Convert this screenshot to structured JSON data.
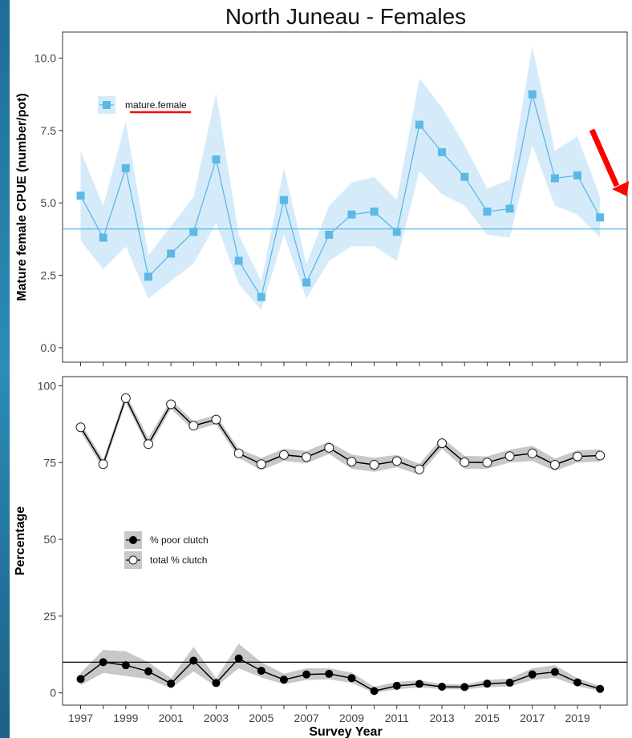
{
  "figure": {
    "title": "North Juneau - Females",
    "xlabel": "Survey Year",
    "colors": {
      "cpue": "#5cb8e6",
      "cpue_band": "#d6ebfa",
      "clutch": "#000000",
      "clutch_band": "#c8c8c8",
      "annotation": "#ff0000"
    }
  },
  "chart_data": [
    {
      "type": "line",
      "title": "North Juneau - Females",
      "xlabel": "",
      "ylabel": "Mature female CPUE (number/pot)",
      "ylim": [
        -0.5,
        10.9
      ],
      "yticks": [
        0.0,
        2.5,
        5.0,
        7.5,
        10.0
      ],
      "ytick_labels": [
        "0.0",
        "2.5",
        "5.0",
        "7.5",
        "10.0"
      ],
      "x": [
        1997,
        1998,
        1999,
        2000,
        2001,
        2002,
        2003,
        2004,
        2005,
        2006,
        2007,
        2008,
        2009,
        2010,
        2011,
        2012,
        2013,
        2014,
        2015,
        2016,
        2017,
        2018,
        2019,
        2020
      ],
      "series": [
        {
          "name": "mature.female",
          "values": [
            5.25,
            3.8,
            6.2,
            2.45,
            3.25,
            4.0,
            6.5,
            3.0,
            1.75,
            5.1,
            2.25,
            3.9,
            4.6,
            4.7,
            4.0,
            7.7,
            6.75,
            5.9,
            4.7,
            4.8,
            8.75,
            5.85,
            5.95,
            4.5
          ],
          "lower": [
            3.7,
            2.7,
            3.5,
            1.7,
            2.3,
            2.9,
            4.3,
            2.2,
            1.3,
            3.9,
            1.7,
            3.0,
            3.5,
            3.5,
            3.0,
            6.1,
            5.3,
            4.9,
            3.9,
            3.8,
            7.0,
            4.9,
            4.6,
            3.8
          ],
          "upper": [
            6.8,
            4.9,
            7.8,
            3.2,
            4.2,
            5.2,
            8.8,
            3.9,
            2.3,
            6.2,
            2.9,
            4.9,
            5.7,
            5.9,
            5.1,
            9.3,
            8.3,
            7.0,
            5.5,
            5.8,
            10.4,
            6.8,
            7.3,
            5.2
          ]
        }
      ],
      "hline": 4.1,
      "legend_position": "top-left",
      "grid": false,
      "annotations": [
        "red underline beneath legend label",
        "red downward arrow at right edge near 2020"
      ]
    },
    {
      "type": "line",
      "title": "",
      "xlabel": "Survey Year",
      "ylabel": "Percentage",
      "ylim": [
        -4,
        103
      ],
      "yticks": [
        0,
        25,
        50,
        75,
        100
      ],
      "ytick_labels": [
        "0",
        "25",
        "50",
        "75",
        "100"
      ],
      "x": [
        1997,
        1998,
        1999,
        2000,
        2001,
        2002,
        2003,
        2004,
        2005,
        2006,
        2007,
        2008,
        2009,
        2010,
        2011,
        2012,
        2013,
        2014,
        2015,
        2016,
        2017,
        2018,
        2019,
        2020
      ],
      "xticks": [
        1997,
        1999,
        2001,
        2003,
        2005,
        2007,
        2009,
        2011,
        2013,
        2015,
        2017,
        2019
      ],
      "xtick_labels": [
        "1997",
        "1999",
        "2001",
        "2003",
        "2005",
        "2007",
        "2009",
        "2011",
        "2013",
        "2015",
        "2017",
        "2019"
      ],
      "series": [
        {
          "name": "% poor clutch",
          "marker": "filled",
          "values": [
            4.5,
            10,
            9,
            7,
            3,
            10.5,
            3.2,
            11.2,
            7.2,
            4.3,
            6,
            6.2,
            4.8,
            0.6,
            2.3,
            2.9,
            2.0,
            1.9,
            3.0,
            3.3,
            6.0,
            6.8,
            3.4,
            1.3
          ],
          "lower": [
            2.5,
            6.5,
            5.5,
            4.5,
            1.5,
            7,
            2,
            8,
            5,
            2.8,
            4.2,
            4.4,
            3.2,
            0,
            1.2,
            1.8,
            1.2,
            1.1,
            1.9,
            2.1,
            4.2,
            4.9,
            2.2,
            0.6
          ],
          "upper": [
            6.5,
            14,
            13.5,
            10,
            4.8,
            15,
            4.8,
            16,
            10,
            6.2,
            8,
            8,
            6.6,
            2,
            3.6,
            4.1,
            2.9,
            2.7,
            4.2,
            4.7,
            8,
            9,
            4.8,
            2.2
          ]
        },
        {
          "name": "total % clutch",
          "marker": "open",
          "values": [
            86.5,
            74.5,
            96,
            81,
            94,
            87,
            89,
            78,
            74.5,
            77.5,
            76.8,
            79.8,
            75.3,
            74.3,
            75.5,
            72.8,
            81.3,
            75.1,
            75,
            77.1,
            78,
            74.3,
            77,
            77.3
          ],
          "lower": [
            85,
            73,
            94.5,
            79.5,
            92.5,
            85.5,
            87.5,
            76.5,
            72.5,
            75.5,
            74.8,
            77.8,
            73,
            72,
            73.5,
            71,
            79.5,
            73,
            73,
            75,
            75.5,
            72.3,
            75,
            75.3
          ],
          "upper": [
            88,
            76,
            97.5,
            83,
            95.5,
            88.5,
            90.5,
            79.5,
            76.5,
            79.5,
            78.8,
            81.8,
            77.6,
            76.6,
            77.5,
            74.6,
            83.1,
            77.2,
            77,
            79.2,
            80.5,
            76.3,
            79,
            79.3
          ]
        }
      ],
      "hline": 10,
      "legend_position": "center-left",
      "grid": false
    }
  ]
}
